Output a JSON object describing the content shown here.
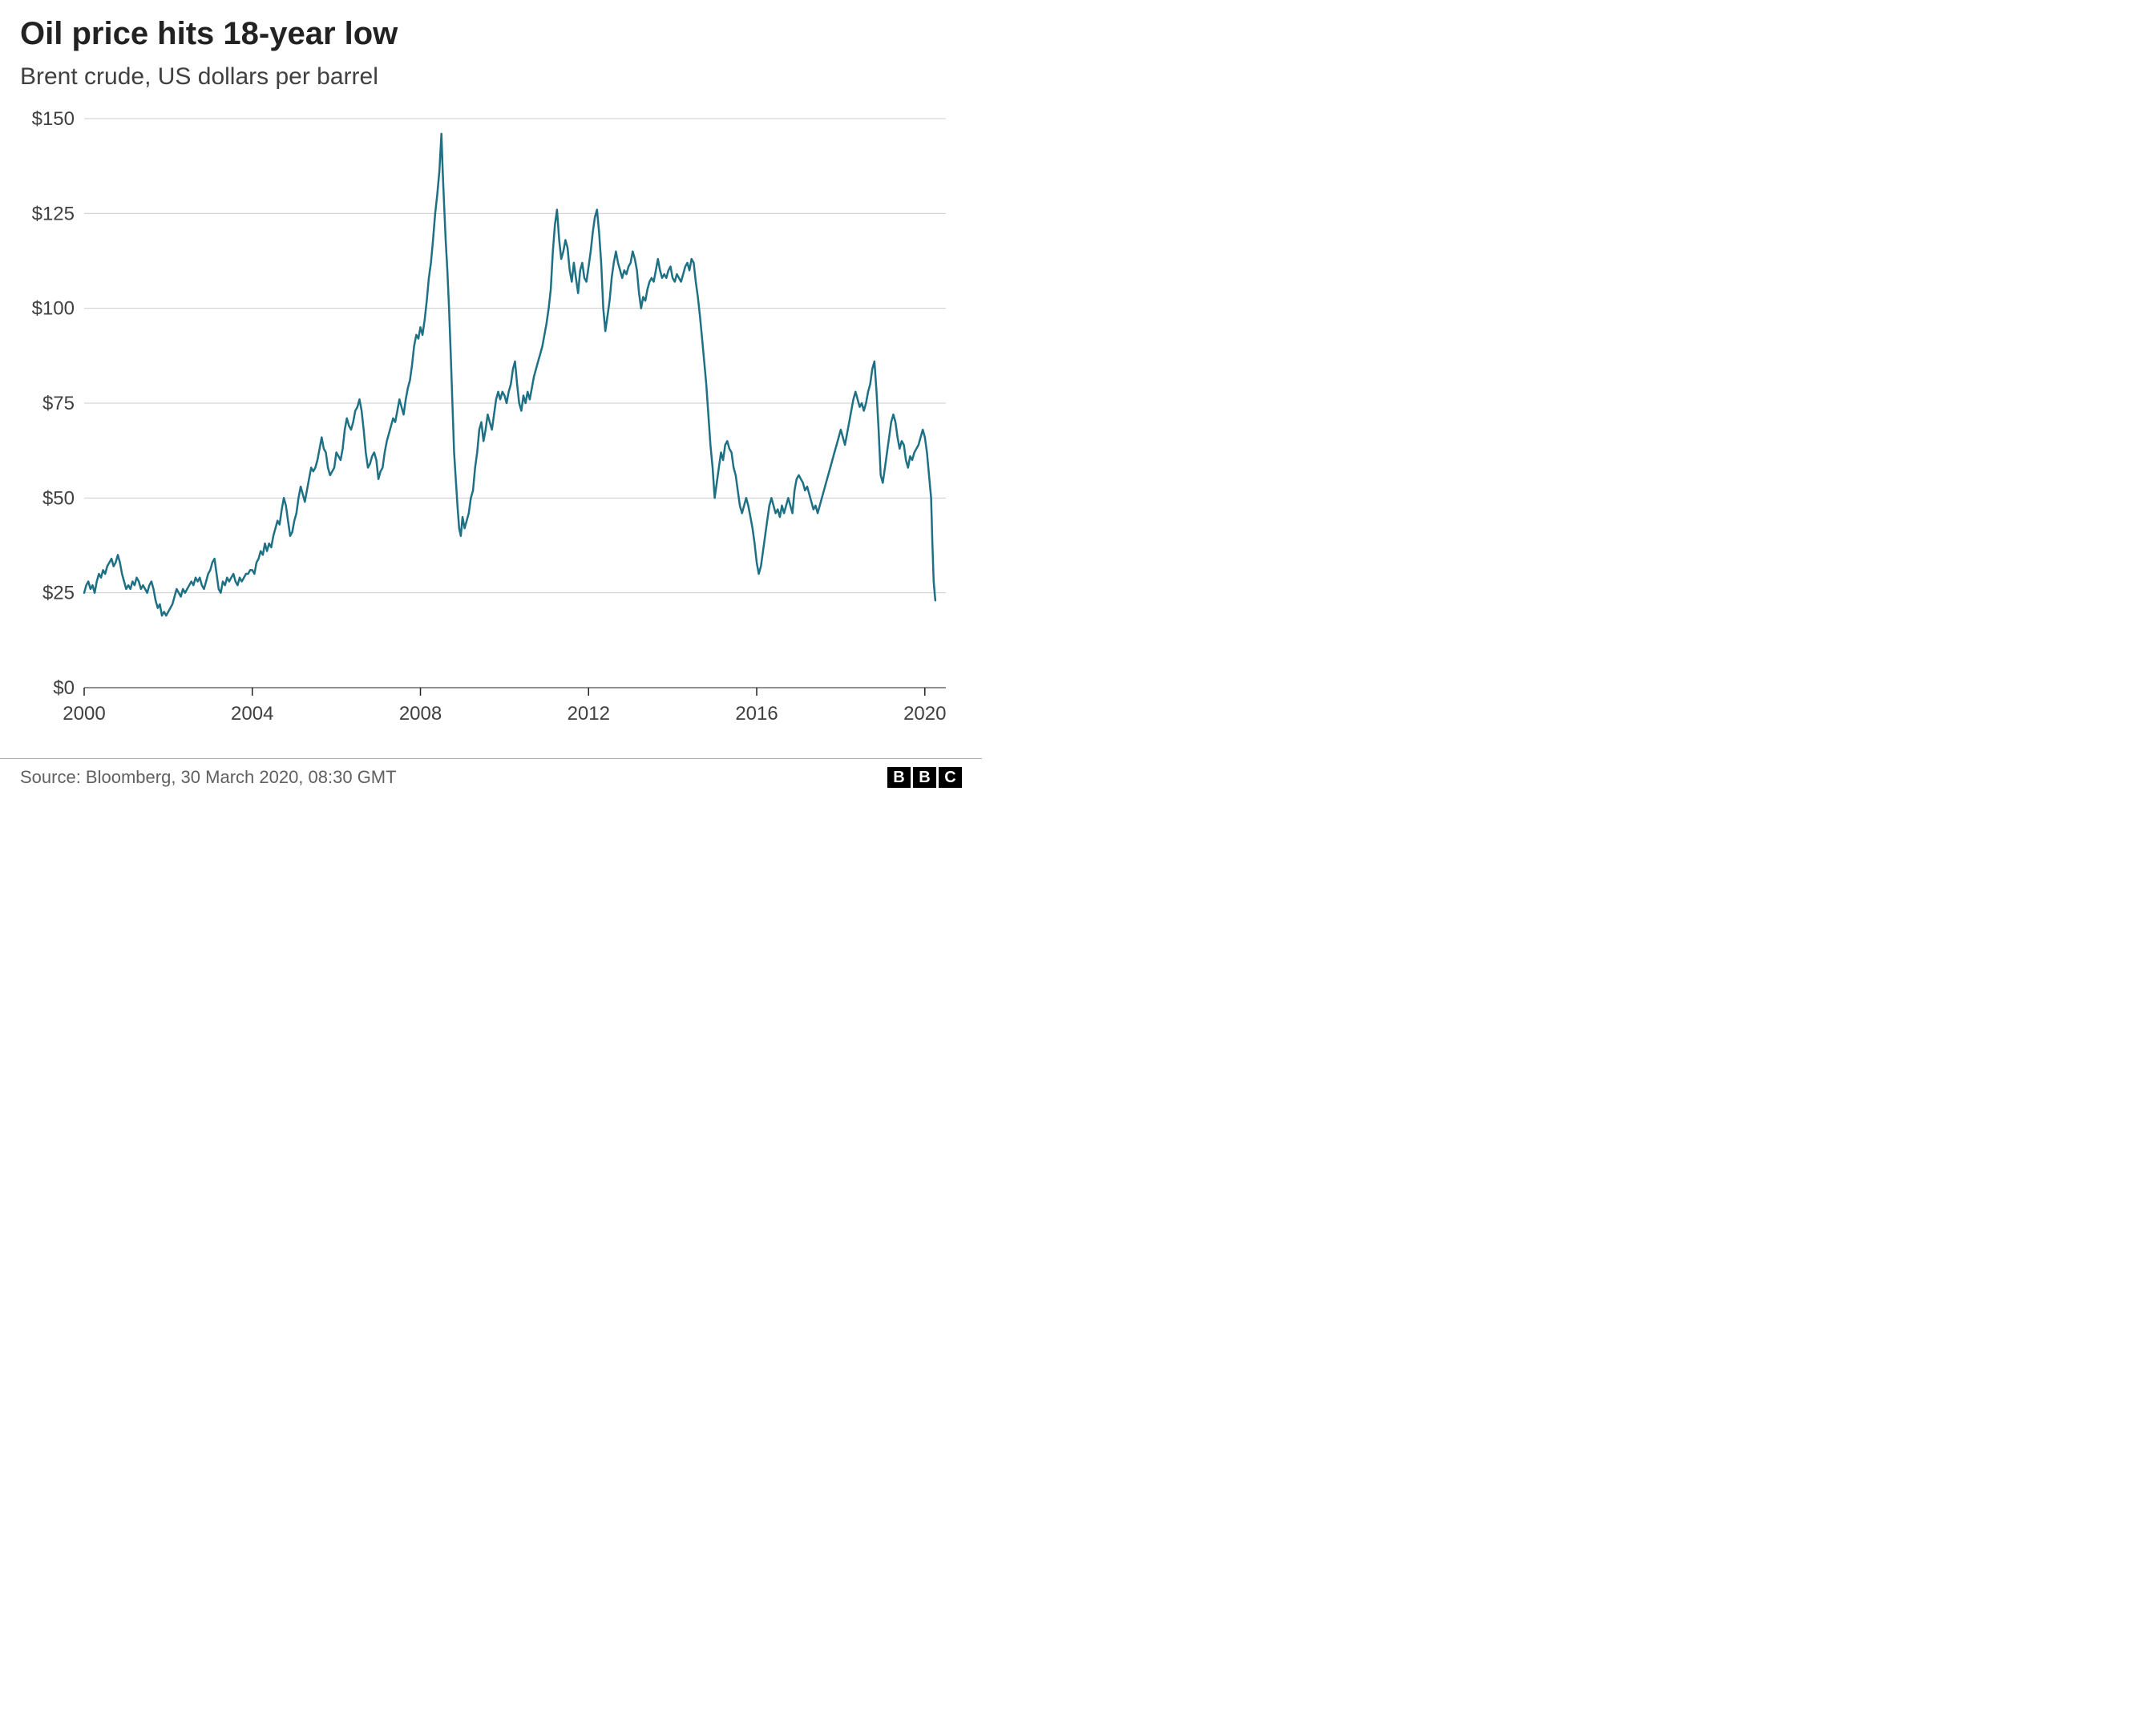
{
  "title": "Oil price hits 18-year low",
  "subtitle": "Brent crude, US dollars per barrel",
  "source": "Source: Bloomberg, 30 March 2020, 08:30 GMT",
  "logo_letters": [
    "B",
    "B",
    "C"
  ],
  "chart": {
    "type": "line",
    "line_color": "#1e7085",
    "line_width": 2.5,
    "background_color": "#ffffff",
    "grid_color": "#cccccc",
    "axis_baseline_color": "#222222",
    "text_color": "#404040",
    "tick_fontsize": 24,
    "x": {
      "min": 2000,
      "max": 2020.5,
      "ticks": [
        2000,
        2004,
        2008,
        2012,
        2016,
        2020
      ],
      "tick_labels": [
        "2000",
        "2004",
        "2008",
        "2012",
        "2016",
        "2020"
      ]
    },
    "y": {
      "min": 0,
      "max": 150,
      "ticks": [
        0,
        25,
        50,
        75,
        100,
        125,
        150
      ],
      "tick_labels": [
        "$0",
        "$25",
        "$50",
        "$75",
        "$100",
        "$125",
        "$150"
      ]
    },
    "data": [
      [
        2000.0,
        25
      ],
      [
        2000.05,
        27
      ],
      [
        2000.1,
        28
      ],
      [
        2000.15,
        26
      ],
      [
        2000.2,
        27
      ],
      [
        2000.25,
        25
      ],
      [
        2000.3,
        28
      ],
      [
        2000.35,
        30
      ],
      [
        2000.4,
        29
      ],
      [
        2000.45,
        31
      ],
      [
        2000.5,
        30
      ],
      [
        2000.55,
        32
      ],
      [
        2000.6,
        33
      ],
      [
        2000.65,
        34
      ],
      [
        2000.7,
        32
      ],
      [
        2000.75,
        33
      ],
      [
        2000.8,
        35
      ],
      [
        2000.85,
        33
      ],
      [
        2000.9,
        30
      ],
      [
        2000.95,
        28
      ],
      [
        2001.0,
        26
      ],
      [
        2001.05,
        27
      ],
      [
        2001.1,
        26
      ],
      [
        2001.15,
        28
      ],
      [
        2001.2,
        27
      ],
      [
        2001.25,
        29
      ],
      [
        2001.3,
        28
      ],
      [
        2001.35,
        26
      ],
      [
        2001.4,
        27
      ],
      [
        2001.45,
        26
      ],
      [
        2001.5,
        25
      ],
      [
        2001.55,
        27
      ],
      [
        2001.6,
        28
      ],
      [
        2001.65,
        26
      ],
      [
        2001.7,
        23
      ],
      [
        2001.75,
        21
      ],
      [
        2001.8,
        22
      ],
      [
        2001.85,
        19
      ],
      [
        2001.9,
        20
      ],
      [
        2001.95,
        19
      ],
      [
        2002.0,
        20
      ],
      [
        2002.05,
        21
      ],
      [
        2002.1,
        22
      ],
      [
        2002.15,
        24
      ],
      [
        2002.2,
        26
      ],
      [
        2002.25,
        25
      ],
      [
        2002.3,
        24
      ],
      [
        2002.35,
        26
      ],
      [
        2002.4,
        25
      ],
      [
        2002.45,
        26
      ],
      [
        2002.5,
        27
      ],
      [
        2002.55,
        28
      ],
      [
        2002.6,
        27
      ],
      [
        2002.65,
        29
      ],
      [
        2002.7,
        28
      ],
      [
        2002.75,
        29
      ],
      [
        2002.8,
        27
      ],
      [
        2002.85,
        26
      ],
      [
        2002.9,
        28
      ],
      [
        2002.95,
        30
      ],
      [
        2003.0,
        31
      ],
      [
        2003.05,
        33
      ],
      [
        2003.1,
        34
      ],
      [
        2003.15,
        30
      ],
      [
        2003.2,
        26
      ],
      [
        2003.25,
        25
      ],
      [
        2003.3,
        28
      ],
      [
        2003.35,
        27
      ],
      [
        2003.4,
        29
      ],
      [
        2003.45,
        28
      ],
      [
        2003.5,
        29
      ],
      [
        2003.55,
        30
      ],
      [
        2003.6,
        28
      ],
      [
        2003.65,
        27
      ],
      [
        2003.7,
        29
      ],
      [
        2003.75,
        28
      ],
      [
        2003.8,
        29
      ],
      [
        2003.85,
        30
      ],
      [
        2003.9,
        30
      ],
      [
        2003.95,
        31
      ],
      [
        2004.0,
        31
      ],
      [
        2004.05,
        30
      ],
      [
        2004.1,
        33
      ],
      [
        2004.15,
        34
      ],
      [
        2004.2,
        36
      ],
      [
        2004.25,
        35
      ],
      [
        2004.3,
        38
      ],
      [
        2004.35,
        36
      ],
      [
        2004.4,
        38
      ],
      [
        2004.45,
        37
      ],
      [
        2004.5,
        40
      ],
      [
        2004.55,
        42
      ],
      [
        2004.6,
        44
      ],
      [
        2004.65,
        43
      ],
      [
        2004.7,
        47
      ],
      [
        2004.75,
        50
      ],
      [
        2004.8,
        48
      ],
      [
        2004.85,
        44
      ],
      [
        2004.9,
        40
      ],
      [
        2004.95,
        41
      ],
      [
        2005.0,
        44
      ],
      [
        2005.05,
        46
      ],
      [
        2005.1,
        50
      ],
      [
        2005.15,
        53
      ],
      [
        2005.2,
        51
      ],
      [
        2005.25,
        49
      ],
      [
        2005.3,
        52
      ],
      [
        2005.35,
        55
      ],
      [
        2005.4,
        58
      ],
      [
        2005.45,
        57
      ],
      [
        2005.5,
        58
      ],
      [
        2005.55,
        60
      ],
      [
        2005.6,
        63
      ],
      [
        2005.65,
        66
      ],
      [
        2005.7,
        63
      ],
      [
        2005.75,
        62
      ],
      [
        2005.8,
        58
      ],
      [
        2005.85,
        56
      ],
      [
        2005.9,
        57
      ],
      [
        2005.95,
        58
      ],
      [
        2006.0,
        62
      ],
      [
        2006.05,
        61
      ],
      [
        2006.1,
        60
      ],
      [
        2006.15,
        63
      ],
      [
        2006.2,
        68
      ],
      [
        2006.25,
        71
      ],
      [
        2006.3,
        69
      ],
      [
        2006.35,
        68
      ],
      [
        2006.4,
        70
      ],
      [
        2006.45,
        73
      ],
      [
        2006.5,
        74
      ],
      [
        2006.55,
        76
      ],
      [
        2006.6,
        73
      ],
      [
        2006.65,
        68
      ],
      [
        2006.7,
        62
      ],
      [
        2006.75,
        58
      ],
      [
        2006.8,
        59
      ],
      [
        2006.85,
        61
      ],
      [
        2006.9,
        62
      ],
      [
        2006.95,
        60
      ],
      [
        2007.0,
        55
      ],
      [
        2007.05,
        57
      ],
      [
        2007.1,
        58
      ],
      [
        2007.15,
        62
      ],
      [
        2007.2,
        65
      ],
      [
        2007.25,
        67
      ],
      [
        2007.3,
        69
      ],
      [
        2007.35,
        71
      ],
      [
        2007.4,
        70
      ],
      [
        2007.45,
        73
      ],
      [
        2007.5,
        76
      ],
      [
        2007.55,
        74
      ],
      [
        2007.6,
        72
      ],
      [
        2007.65,
        76
      ],
      [
        2007.7,
        79
      ],
      [
        2007.75,
        81
      ],
      [
        2007.8,
        85
      ],
      [
        2007.85,
        90
      ],
      [
        2007.9,
        93
      ],
      [
        2007.95,
        92
      ],
      [
        2008.0,
        95
      ],
      [
        2008.05,
        93
      ],
      [
        2008.1,
        97
      ],
      [
        2008.15,
        102
      ],
      [
        2008.2,
        108
      ],
      [
        2008.25,
        112
      ],
      [
        2008.3,
        118
      ],
      [
        2008.35,
        125
      ],
      [
        2008.4,
        130
      ],
      [
        2008.45,
        136
      ],
      [
        2008.5,
        146
      ],
      [
        2008.53,
        136
      ],
      [
        2008.56,
        128
      ],
      [
        2008.6,
        118
      ],
      [
        2008.64,
        110
      ],
      [
        2008.68,
        100
      ],
      [
        2008.72,
        88
      ],
      [
        2008.76,
        75
      ],
      [
        2008.8,
        62
      ],
      [
        2008.84,
        55
      ],
      [
        2008.88,
        48
      ],
      [
        2008.92,
        42
      ],
      [
        2008.96,
        40
      ],
      [
        2009.0,
        45
      ],
      [
        2009.05,
        42
      ],
      [
        2009.1,
        44
      ],
      [
        2009.15,
        46
      ],
      [
        2009.2,
        50
      ],
      [
        2009.25,
        52
      ],
      [
        2009.3,
        58
      ],
      [
        2009.35,
        62
      ],
      [
        2009.4,
        68
      ],
      [
        2009.45,
        70
      ],
      [
        2009.5,
        65
      ],
      [
        2009.55,
        68
      ],
      [
        2009.6,
        72
      ],
      [
        2009.65,
        70
      ],
      [
        2009.7,
        68
      ],
      [
        2009.75,
        72
      ],
      [
        2009.8,
        76
      ],
      [
        2009.85,
        78
      ],
      [
        2009.9,
        76
      ],
      [
        2009.95,
        78
      ],
      [
        2010.0,
        77
      ],
      [
        2010.05,
        75
      ],
      [
        2010.1,
        78
      ],
      [
        2010.15,
        80
      ],
      [
        2010.2,
        84
      ],
      [
        2010.25,
        86
      ],
      [
        2010.3,
        80
      ],
      [
        2010.35,
        75
      ],
      [
        2010.4,
        73
      ],
      [
        2010.45,
        77
      ],
      [
        2010.5,
        75
      ],
      [
        2010.55,
        78
      ],
      [
        2010.6,
        76
      ],
      [
        2010.65,
        79
      ],
      [
        2010.7,
        82
      ],
      [
        2010.75,
        84
      ],
      [
        2010.8,
        86
      ],
      [
        2010.85,
        88
      ],
      [
        2010.9,
        90
      ],
      [
        2010.95,
        93
      ],
      [
        2011.0,
        96
      ],
      [
        2011.05,
        100
      ],
      [
        2011.1,
        105
      ],
      [
        2011.15,
        115
      ],
      [
        2011.2,
        122
      ],
      [
        2011.25,
        126
      ],
      [
        2011.3,
        118
      ],
      [
        2011.35,
        113
      ],
      [
        2011.4,
        115
      ],
      [
        2011.45,
        118
      ],
      [
        2011.5,
        116
      ],
      [
        2011.55,
        110
      ],
      [
        2011.6,
        107
      ],
      [
        2011.65,
        112
      ],
      [
        2011.7,
        108
      ],
      [
        2011.75,
        104
      ],
      [
        2011.8,
        110
      ],
      [
        2011.85,
        112
      ],
      [
        2011.9,
        108
      ],
      [
        2011.95,
        107
      ],
      [
        2012.0,
        111
      ],
      [
        2012.05,
        115
      ],
      [
        2012.1,
        120
      ],
      [
        2012.15,
        124
      ],
      [
        2012.2,
        126
      ],
      [
        2012.25,
        120
      ],
      [
        2012.3,
        112
      ],
      [
        2012.35,
        100
      ],
      [
        2012.4,
        94
      ],
      [
        2012.45,
        98
      ],
      [
        2012.5,
        102
      ],
      [
        2012.55,
        108
      ],
      [
        2012.6,
        112
      ],
      [
        2012.65,
        115
      ],
      [
        2012.7,
        112
      ],
      [
        2012.75,
        110
      ],
      [
        2012.8,
        108
      ],
      [
        2012.85,
        110
      ],
      [
        2012.9,
        109
      ],
      [
        2012.95,
        111
      ],
      [
        2013.0,
        112
      ],
      [
        2013.05,
        115
      ],
      [
        2013.1,
        113
      ],
      [
        2013.15,
        110
      ],
      [
        2013.2,
        104
      ],
      [
        2013.25,
        100
      ],
      [
        2013.3,
        103
      ],
      [
        2013.35,
        102
      ],
      [
        2013.4,
        105
      ],
      [
        2013.45,
        107
      ],
      [
        2013.5,
        108
      ],
      [
        2013.55,
        107
      ],
      [
        2013.6,
        110
      ],
      [
        2013.65,
        113
      ],
      [
        2013.7,
        110
      ],
      [
        2013.75,
        108
      ],
      [
        2013.8,
        109
      ],
      [
        2013.85,
        108
      ],
      [
        2013.9,
        110
      ],
      [
        2013.95,
        111
      ],
      [
        2014.0,
        108
      ],
      [
        2014.05,
        107
      ],
      [
        2014.1,
        109
      ],
      [
        2014.15,
        108
      ],
      [
        2014.2,
        107
      ],
      [
        2014.25,
        109
      ],
      [
        2014.3,
        111
      ],
      [
        2014.35,
        112
      ],
      [
        2014.4,
        110
      ],
      [
        2014.45,
        113
      ],
      [
        2014.5,
        112
      ],
      [
        2014.55,
        107
      ],
      [
        2014.6,
        103
      ],
      [
        2014.65,
        98
      ],
      [
        2014.7,
        92
      ],
      [
        2014.75,
        86
      ],
      [
        2014.8,
        80
      ],
      [
        2014.85,
        72
      ],
      [
        2014.9,
        64
      ],
      [
        2014.95,
        58
      ],
      [
        2015.0,
        50
      ],
      [
        2015.05,
        54
      ],
      [
        2015.1,
        58
      ],
      [
        2015.15,
        62
      ],
      [
        2015.2,
        60
      ],
      [
        2015.25,
        64
      ],
      [
        2015.3,
        65
      ],
      [
        2015.35,
        63
      ],
      [
        2015.4,
        62
      ],
      [
        2015.45,
        58
      ],
      [
        2015.5,
        56
      ],
      [
        2015.55,
        52
      ],
      [
        2015.6,
        48
      ],
      [
        2015.65,
        46
      ],
      [
        2015.7,
        48
      ],
      [
        2015.75,
        50
      ],
      [
        2015.8,
        48
      ],
      [
        2015.85,
        45
      ],
      [
        2015.9,
        42
      ],
      [
        2015.95,
        38
      ],
      [
        2016.0,
        33
      ],
      [
        2016.05,
        30
      ],
      [
        2016.1,
        32
      ],
      [
        2016.15,
        36
      ],
      [
        2016.2,
        40
      ],
      [
        2016.25,
        44
      ],
      [
        2016.3,
        48
      ],
      [
        2016.35,
        50
      ],
      [
        2016.4,
        48
      ],
      [
        2016.45,
        46
      ],
      [
        2016.5,
        47
      ],
      [
        2016.55,
        45
      ],
      [
        2016.6,
        48
      ],
      [
        2016.65,
        46
      ],
      [
        2016.7,
        48
      ],
      [
        2016.75,
        50
      ],
      [
        2016.8,
        48
      ],
      [
        2016.85,
        46
      ],
      [
        2016.9,
        52
      ],
      [
        2016.95,
        55
      ],
      [
        2017.0,
        56
      ],
      [
        2017.05,
        55
      ],
      [
        2017.1,
        54
      ],
      [
        2017.15,
        52
      ],
      [
        2017.2,
        53
      ],
      [
        2017.25,
        51
      ],
      [
        2017.3,
        49
      ],
      [
        2017.35,
        47
      ],
      [
        2017.4,
        48
      ],
      [
        2017.45,
        46
      ],
      [
        2017.5,
        48
      ],
      [
        2017.55,
        50
      ],
      [
        2017.6,
        52
      ],
      [
        2017.65,
        54
      ],
      [
        2017.7,
        56
      ],
      [
        2017.75,
        58
      ],
      [
        2017.8,
        60
      ],
      [
        2017.85,
        62
      ],
      [
        2017.9,
        64
      ],
      [
        2017.95,
        66
      ],
      [
        2018.0,
        68
      ],
      [
        2018.05,
        66
      ],
      [
        2018.1,
        64
      ],
      [
        2018.15,
        67
      ],
      [
        2018.2,
        70
      ],
      [
        2018.25,
        73
      ],
      [
        2018.3,
        76
      ],
      [
        2018.35,
        78
      ],
      [
        2018.4,
        76
      ],
      [
        2018.45,
        74
      ],
      [
        2018.5,
        75
      ],
      [
        2018.55,
        73
      ],
      [
        2018.6,
        75
      ],
      [
        2018.65,
        78
      ],
      [
        2018.7,
        80
      ],
      [
        2018.75,
        84
      ],
      [
        2018.8,
        86
      ],
      [
        2018.85,
        78
      ],
      [
        2018.9,
        68
      ],
      [
        2018.95,
        56
      ],
      [
        2019.0,
        54
      ],
      [
        2019.05,
        58
      ],
      [
        2019.1,
        62
      ],
      [
        2019.15,
        66
      ],
      [
        2019.2,
        70
      ],
      [
        2019.25,
        72
      ],
      [
        2019.3,
        70
      ],
      [
        2019.35,
        66
      ],
      [
        2019.4,
        63
      ],
      [
        2019.45,
        65
      ],
      [
        2019.5,
        64
      ],
      [
        2019.55,
        60
      ],
      [
        2019.6,
        58
      ],
      [
        2019.65,
        61
      ],
      [
        2019.7,
        60
      ],
      [
        2019.75,
        62
      ],
      [
        2019.8,
        63
      ],
      [
        2019.85,
        64
      ],
      [
        2019.9,
        66
      ],
      [
        2019.95,
        68
      ],
      [
        2020.0,
        66
      ],
      [
        2020.05,
        62
      ],
      [
        2020.1,
        56
      ],
      [
        2020.15,
        50
      ],
      [
        2020.18,
        38
      ],
      [
        2020.21,
        28
      ],
      [
        2020.24,
        24
      ],
      [
        2020.25,
        23
      ]
    ]
  }
}
